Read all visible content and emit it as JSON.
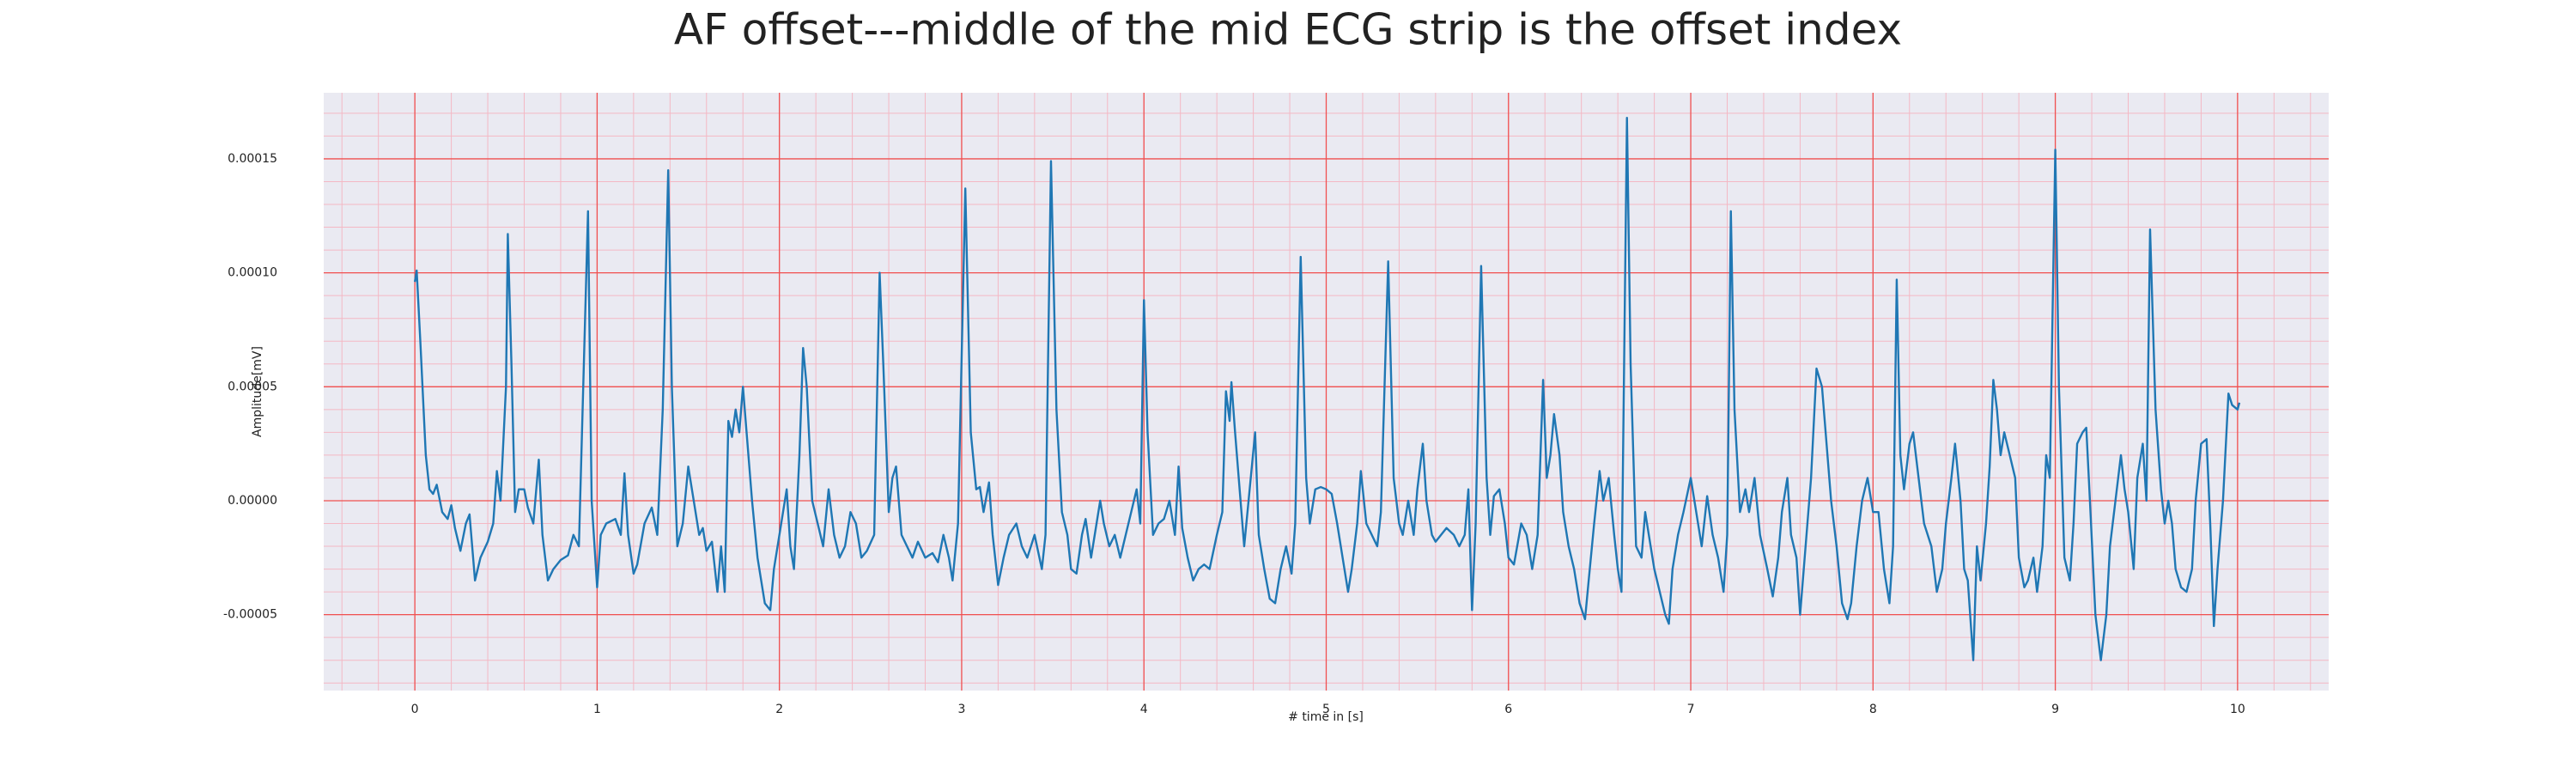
{
  "chart_data": {
    "type": "line",
    "title": "AF offset---middle of the mid ECG strip is the offset index",
    "xlabel": "# time in [s]",
    "ylabel": "Amplitude[mV]",
    "xlim": [
      -0.5,
      10.5
    ],
    "ylim": [
      -8.33e-05,
      0.000179
    ],
    "xticks": [
      0,
      1,
      2,
      3,
      4,
      5,
      6,
      7,
      8,
      9,
      10
    ],
    "yticks": [
      {
        "value": -5e-05,
        "label": "-0.00005"
      },
      {
        "value": 0,
        "label": "0.00000"
      },
      {
        "value": 5e-05,
        "label": "0.00005"
      },
      {
        "value": 0.0001,
        "label": "0.00010"
      },
      {
        "value": 0.00015,
        "label": "0.00015"
      }
    ],
    "grid": true,
    "grid_color": "#f05050",
    "minor_grid_color": "#f4b8c4",
    "minor_divisions": 5,
    "background": "#eaeaf2",
    "series": [
      {
        "color": "#1f77b4",
        "x": [
          0.0,
          0.01,
          0.03,
          0.06,
          0.08,
          0.1,
          0.12,
          0.15,
          0.18,
          0.2,
          0.22,
          0.25,
          0.28,
          0.3,
          0.33,
          0.36,
          0.4,
          0.43,
          0.45,
          0.47,
          0.5,
          0.51,
          0.53,
          0.55,
          0.57,
          0.6,
          0.62,
          0.65,
          0.68,
          0.7,
          0.73,
          0.76,
          0.8,
          0.84,
          0.87,
          0.9,
          0.95,
          0.97,
          1.0,
          1.02,
          1.05,
          1.1,
          1.13,
          1.15,
          1.17,
          1.2,
          1.22,
          1.26,
          1.3,
          1.33,
          1.36,
          1.39,
          1.41,
          1.44,
          1.47,
          1.5,
          1.53,
          1.56,
          1.58,
          1.6,
          1.63,
          1.66,
          1.68,
          1.7,
          1.72,
          1.74,
          1.76,
          1.78,
          1.8,
          1.82,
          1.85,
          1.88,
          1.92,
          1.95,
          1.97,
          2.0,
          2.02,
          2.04,
          2.06,
          2.08,
          2.11,
          2.13,
          2.15,
          2.18,
          2.21,
          2.24,
          2.27,
          2.3,
          2.33,
          2.36,
          2.39,
          2.42,
          2.45,
          2.48,
          2.52,
          2.55,
          2.57,
          2.6,
          2.62,
          2.64,
          2.67,
          2.7,
          2.73,
          2.76,
          2.8,
          2.84,
          2.87,
          2.9,
          2.93,
          2.95,
          2.98,
          3.02,
          3.05,
          3.08,
          3.1,
          3.12,
          3.15,
          3.17,
          3.2,
          3.23,
          3.26,
          3.3,
          3.33,
          3.36,
          3.4,
          3.44,
          3.46,
          3.49,
          3.52,
          3.55,
          3.58,
          3.6,
          3.63,
          3.66,
          3.68,
          3.71,
          3.74,
          3.76,
          3.78,
          3.81,
          3.84,
          3.87,
          3.9,
          3.93,
          3.96,
          3.98,
          4.0,
          4.02,
          4.05,
          4.08,
          4.11,
          4.14,
          4.17,
          4.19,
          4.21,
          4.24,
          4.27,
          4.3,
          4.33,
          4.36,
          4.4,
          4.43,
          4.45,
          4.47,
          4.48,
          4.5,
          4.53,
          4.55,
          4.58,
          4.61,
          4.63,
          4.66,
          4.69,
          4.72,
          4.75,
          4.78,
          4.81,
          4.83,
          4.86,
          4.89,
          4.91,
          4.94,
          4.97,
          5.0,
          5.03,
          5.06,
          5.09,
          5.12,
          5.14,
          5.17,
          5.19,
          5.22,
          5.25,
          5.28,
          5.3,
          5.34,
          5.37,
          5.4,
          5.42,
          5.45,
          5.48,
          5.5,
          5.53,
          5.55,
          5.58,
          5.6,
          5.63,
          5.66,
          5.7,
          5.73,
          5.76,
          5.78,
          5.8,
          5.82,
          5.85,
          5.88,
          5.9,
          5.92,
          5.95,
          5.98,
          6.0,
          6.03,
          6.07,
          6.1,
          6.13,
          6.16,
          6.19,
          6.21,
          6.23,
          6.25,
          6.28,
          6.3,
          6.33,
          6.36,
          6.39,
          6.42,
          6.44,
          6.47,
          6.5,
          6.52,
          6.55,
          6.58,
          6.6,
          6.62,
          6.65,
          6.67,
          6.7,
          6.73,
          6.75,
          6.77,
          6.8,
          6.83,
          6.86,
          6.88,
          6.9,
          6.93,
          6.96,
          7.0,
          7.03,
          7.06,
          7.09,
          7.12,
          7.15,
          7.18,
          7.2,
          7.22,
          7.24,
          7.27,
          7.3,
          7.32,
          7.35,
          7.38,
          7.42,
          7.45,
          7.48,
          7.5,
          7.53,
          7.55,
          7.58,
          7.6,
          7.63,
          7.66,
          7.69,
          7.72,
          7.74,
          7.77,
          7.8,
          7.83,
          7.86,
          7.88,
          7.91,
          7.94,
          7.97,
          8.0,
          8.03,
          8.06,
          8.09,
          8.11,
          8.13,
          8.15,
          8.17,
          8.2,
          8.22,
          8.25,
          8.28,
          8.3,
          8.32,
          8.35,
          8.38,
          8.4,
          8.43,
          8.45,
          8.48,
          8.5,
          8.52,
          8.55,
          8.57,
          8.59,
          8.62,
          8.64,
          8.66,
          8.68,
          8.7,
          8.72,
          8.75,
          8.78,
          8.8,
          8.83,
          8.85,
          8.88,
          8.9,
          8.93,
          8.95,
          8.97,
          9.0,
          9.02,
          9.05,
          9.08,
          9.1,
          9.12,
          9.15,
          9.17,
          9.19,
          9.22,
          9.25,
          9.28,
          9.3,
          9.33,
          9.36,
          9.38,
          9.4,
          9.43,
          9.45,
          9.48,
          9.5,
          9.52,
          9.55,
          9.58,
          9.6,
          9.62,
          9.64,
          9.66,
          9.69,
          9.72,
          9.75,
          9.77,
          9.8,
          9.83,
          9.85,
          9.87,
          9.89,
          9.92,
          9.95,
          9.97,
          10.0,
          10.01
        ],
        "values": [
          9.6e-05,
          0.000101,
          7e-05,
          2e-05,
          5e-06,
          3e-06,
          7e-06,
          -5e-06,
          -8e-06,
          -2e-06,
          -1.2e-05,
          -2.2e-05,
          -1e-05,
          -6e-06,
          -3.5e-05,
          -2.5e-05,
          -1.8e-05,
          -1e-05,
          1.3e-05,
          0,
          5e-05,
          0.000117,
          6e-05,
          -5e-06,
          5e-06,
          5e-06,
          -3e-06,
          -1e-05,
          1.8e-05,
          -1.5e-05,
          -3.5e-05,
          -3e-05,
          -2.6e-05,
          -2.4e-05,
          -1.5e-05,
          -2e-05,
          0.000127,
          0,
          -3.8e-05,
          -1.5e-05,
          -1e-05,
          -8e-06,
          -1.5e-05,
          1.2e-05,
          -1.5e-05,
          -3.2e-05,
          -2.8e-05,
          -1e-05,
          -3e-06,
          -1.5e-05,
          4e-05,
          0.000145,
          5e-05,
          -2e-05,
          -1e-05,
          1.5e-05,
          0,
          -1.5e-05,
          -1.2e-05,
          -2.2e-05,
          -1.8e-05,
          -4e-05,
          -2e-05,
          -4e-05,
          3.5e-05,
          2.8e-05,
          4e-05,
          3e-05,
          5e-05,
          3e-05,
          0,
          -2.5e-05,
          -4.5e-05,
          -4.8e-05,
          -3e-05,
          -1.5e-05,
          -5e-06,
          5e-06,
          -2e-05,
          -3e-05,
          2e-05,
          6.7e-05,
          5e-05,
          0,
          -1e-05,
          -2e-05,
          5e-06,
          -1.5e-05,
          -2.5e-05,
          -2e-05,
          -5e-06,
          -1e-05,
          -2.5e-05,
          -2.2e-05,
          -1.5e-05,
          0.0001,
          6e-05,
          -5e-06,
          1e-05,
          1.5e-05,
          -1.5e-05,
          -2e-05,
          -2.5e-05,
          -1.8e-05,
          -2.5e-05,
          -2.3e-05,
          -2.7e-05,
          -1.5e-05,
          -2.5e-05,
          -3.5e-05,
          -1e-05,
          0.000137,
          3e-05,
          5e-06,
          6e-06,
          -5e-06,
          8e-06,
          -1.5e-05,
          -3.7e-05,
          -2.5e-05,
          -1.5e-05,
          -1e-05,
          -2e-05,
          -2.5e-05,
          -1.5e-05,
          -3e-05,
          -1.5e-05,
          0.000149,
          4e-05,
          -5e-06,
          -1.5e-05,
          -3e-05,
          -3.2e-05,
          -1.5e-05,
          -8e-06,
          -2.5e-05,
          -1e-05,
          0,
          -1e-05,
          -2e-05,
          -1.5e-05,
          -2.5e-05,
          -1.5e-05,
          -5e-06,
          5e-06,
          -1e-05,
          8.8e-05,
          3e-05,
          -1.5e-05,
          -1e-05,
          -8e-06,
          0,
          -1.5e-05,
          1.5e-05,
          -1.2e-05,
          -2.5e-05,
          -3.5e-05,
          -3e-05,
          -2.8e-05,
          -3e-05,
          -1.5e-05,
          -5e-06,
          4.8e-05,
          3.5e-05,
          5.2e-05,
          3e-05,
          0,
          -2e-05,
          5e-06,
          3e-05,
          -1.5e-05,
          -3e-05,
          -4.3e-05,
          -4.5e-05,
          -3e-05,
          -2e-05,
          -3.2e-05,
          -1e-05,
          0.000107,
          1e-05,
          -1e-05,
          5e-06,
          6e-06,
          5e-06,
          3e-06,
          -1e-05,
          -2.5e-05,
          -4e-05,
          -3e-05,
          -1e-05,
          1.3e-05,
          -1e-05,
          -1.5e-05,
          -2e-05,
          -5e-06,
          0.000105,
          1e-05,
          -1e-05,
          -1.5e-05,
          0,
          -1.5e-05,
          5e-06,
          2.5e-05,
          0,
          -1.5e-05,
          -1.8e-05,
          -1.5e-05,
          -1.2e-05,
          -1.5e-05,
          -2e-05,
          -1.5e-05,
          5e-06,
          -4.8e-05,
          -1e-05,
          0.000103,
          1e-05,
          -1.5e-05,
          2e-06,
          5e-06,
          -1e-05,
          -2.5e-05,
          -2.8e-05,
          -1e-05,
          -1.5e-05,
          -3e-05,
          -1.5e-05,
          5.3e-05,
          1e-05,
          2e-05,
          3.8e-05,
          2e-05,
          -5e-06,
          -2e-05,
          -3e-05,
          -4.5e-05,
          -5.2e-05,
          -3.5e-05,
          -1e-05,
          1.3e-05,
          0,
          1e-05,
          -1.5e-05,
          -3e-05,
          -4e-05,
          0.000168,
          6e-05,
          -2e-05,
          -2.5e-05,
          -5e-06,
          -1.5e-05,
          -3e-05,
          -4e-05,
          -5e-05,
          -5.4e-05,
          -3e-05,
          -1.5e-05,
          -5e-06,
          1e-05,
          -5e-06,
          -2e-05,
          2e-06,
          -1.5e-05,
          -2.5e-05,
          -4e-05,
          -1.5e-05,
          0.000127,
          4e-05,
          -5e-06,
          5e-06,
          -5e-06,
          1e-05,
          -1.5e-05,
          -3e-05,
          -4.2e-05,
          -2.5e-05,
          -5e-06,
          1e-05,
          -1.5e-05,
          -2.5e-05,
          -5e-05,
          -2e-05,
          1e-05,
          5.8e-05,
          5e-05,
          3e-05,
          0,
          -2e-05,
          -4.5e-05,
          -5.2e-05,
          -4.5e-05,
          -2e-05,
          0,
          1e-05,
          -5e-06,
          -5e-06,
          -3e-05,
          -4.5e-05,
          -2e-05,
          9.7e-05,
          2e-05,
          5e-06,
          2.5e-05,
          3e-05,
          1e-05,
          -1e-05,
          -1.5e-05,
          -2e-05,
          -4e-05,
          -3e-05,
          -1e-05,
          1e-05,
          2.5e-05,
          0,
          -3e-05,
          -3.5e-05,
          -7e-05,
          -2e-05,
          -3.5e-05,
          -1e-05,
          1.5e-05,
          5.3e-05,
          4e-05,
          2e-05,
          3e-05,
          2e-05,
          1e-05,
          -2.5e-05,
          -3.8e-05,
          -3.5e-05,
          -2.5e-05,
          -4e-05,
          -2e-05,
          2e-05,
          1e-05,
          0.000154,
          5e-05,
          -2.5e-05,
          -3.5e-05,
          -1e-05,
          2.5e-05,
          3e-05,
          3.2e-05,
          0,
          -5e-05,
          -7e-05,
          -5e-05,
          -2e-05,
          0,
          2e-05,
          5e-06,
          -5e-06,
          -3e-05,
          1e-05,
          2.5e-05,
          0,
          0.000119,
          4e-05,
          5e-06,
          -1e-05,
          0,
          -1e-05,
          -3e-05,
          -3.8e-05,
          -4e-05,
          -3e-05,
          0,
          2.5e-05,
          2.7e-05,
          -1e-05,
          -5.5e-05,
          -3e-05,
          0,
          4.7e-05,
          4.2e-05,
          4e-05,
          4.3e-05
        ]
      }
    ]
  }
}
